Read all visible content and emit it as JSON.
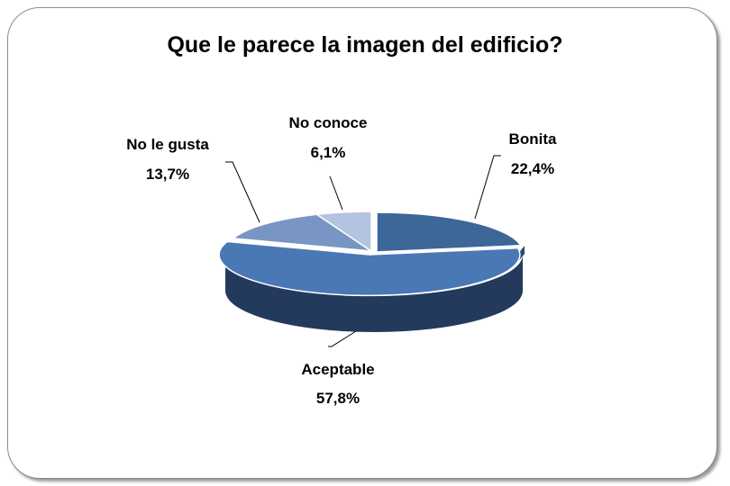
{
  "chart_data": {
    "type": "pie",
    "title": "Que le parece la imagen del edificio?",
    "slices": [
      {
        "label": "Bonita",
        "value": 22.4,
        "value_label": "22,4%",
        "color": "#3d6699",
        "exploded": false
      },
      {
        "label": "Aceptable",
        "value": 57.8,
        "value_label": "57,8%",
        "color": "#4a78b5",
        "exploded": true
      },
      {
        "label": "No le gusta",
        "value": 13.7,
        "value_label": "13,7%",
        "color": "#7895c4",
        "exploded": false
      },
      {
        "label": "No conoce",
        "value": 6.1,
        "value_label": "6,1%",
        "color": "#b4c3e0",
        "exploded": false
      }
    ],
    "legend": "none",
    "style": "3d-exploded"
  }
}
